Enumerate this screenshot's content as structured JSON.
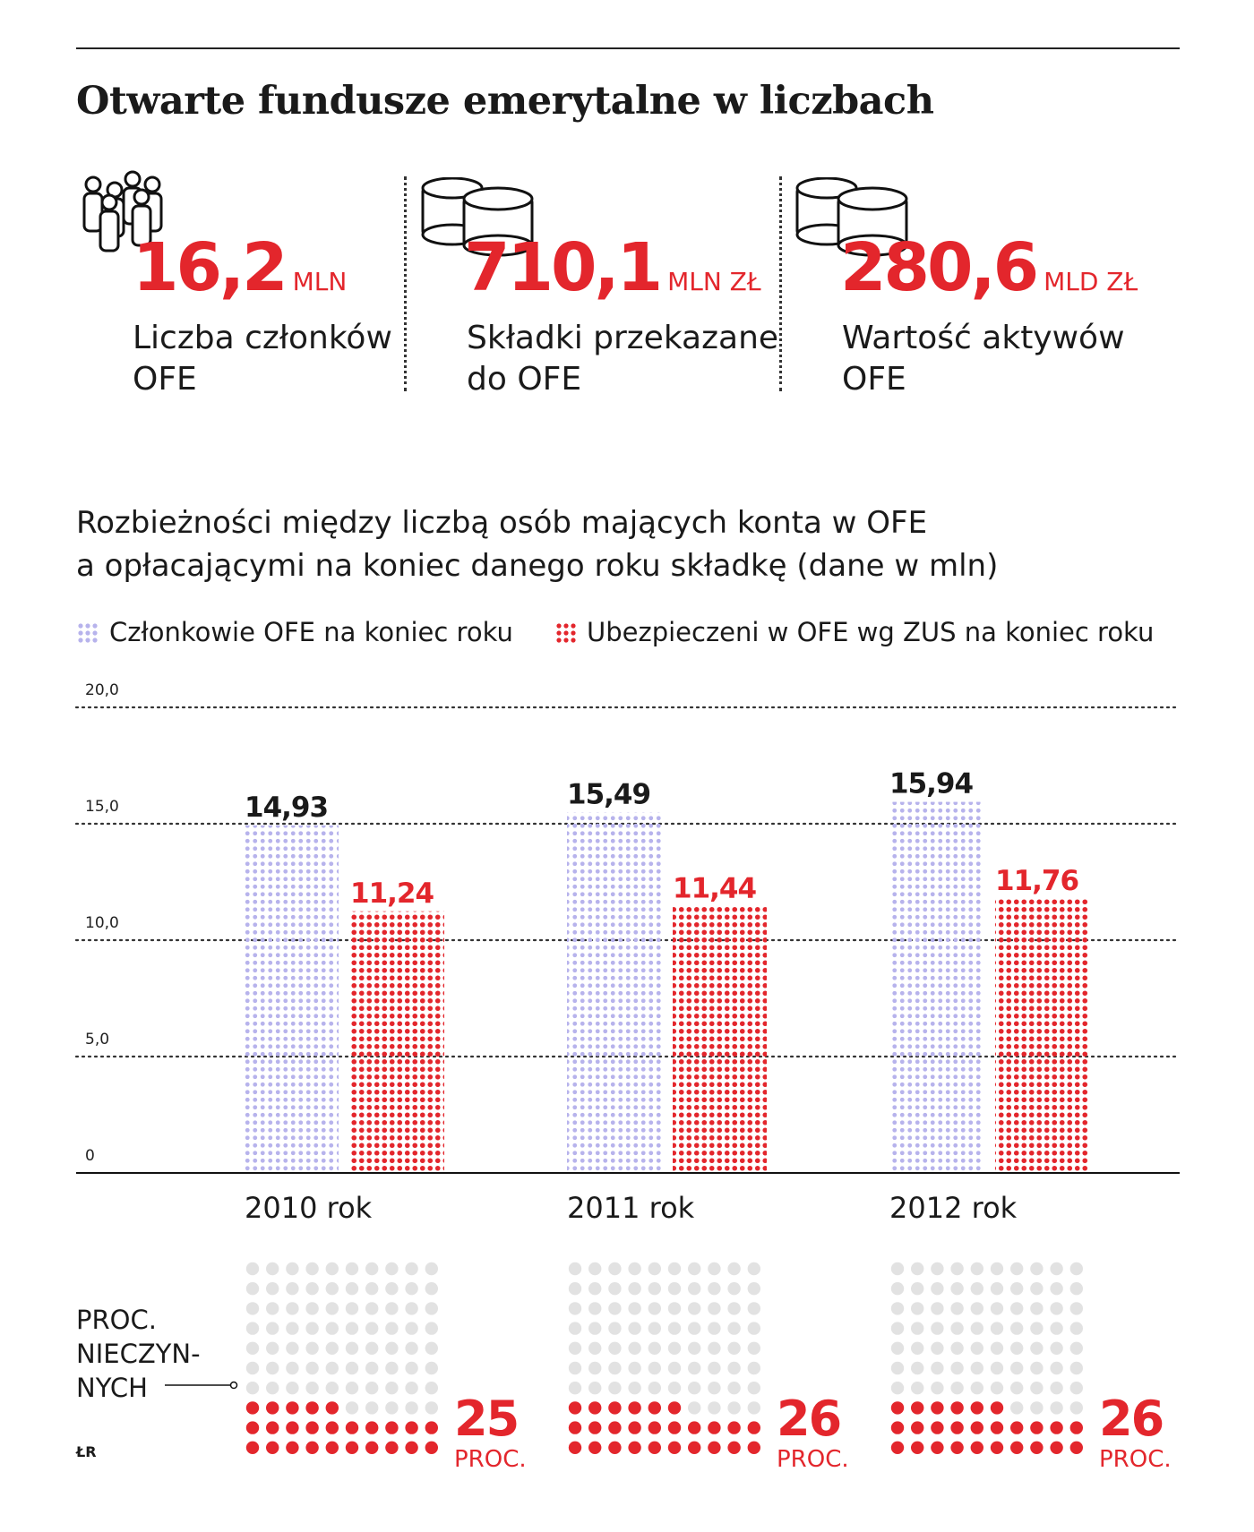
{
  "title": "Otwarte fundusze emerytalne w liczbach",
  "stats": [
    {
      "value": "16,2",
      "unit": "MLN",
      "label_line1": "Liczba członków",
      "label_line2": "OFE",
      "icon": "people-icon"
    },
    {
      "value": "710,1",
      "unit": "MLN ZŁ",
      "label_line1": "Składki przekazane",
      "label_line2": "do OFE",
      "icon": "coins-icon"
    },
    {
      "value": "280,6",
      "unit": "MLD ZŁ",
      "label_line1": "Wartość aktywów",
      "label_line2": "OFE",
      "icon": "coins-icon"
    }
  ],
  "subtitle_line1": "Rozbieżności między liczbą osób mających konta w OFE",
  "subtitle_line2": "a opłacającymi na koniec danego roku składkę (dane w mln)",
  "colors": {
    "red": "#e3262c",
    "lavender": "#b7b3ec",
    "gray": "#e2e2e2",
    "dark": "#1a1a1a"
  },
  "chart_data": {
    "type": "bar",
    "categories": [
      "2010 rok",
      "2011 rok",
      "2012 rok"
    ],
    "series": [
      {
        "name": "Członkowie OFE na koniec roku",
        "values": [
          14.93,
          15.49,
          15.94
        ],
        "labels": [
          "14,93",
          "15,49",
          "15,94"
        ],
        "color": "#b7b3ec"
      },
      {
        "name": "Ubezpieczeni w OFE wg ZUS na koniec roku",
        "values": [
          11.24,
          11.44,
          11.76
        ],
        "labels": [
          "11,24",
          "11,44",
          "11,76"
        ],
        "color": "#e3262c"
      }
    ],
    "ylim": [
      0,
      20
    ],
    "yticks": [
      0,
      5,
      10,
      15,
      20
    ],
    "ytick_labels": [
      "0",
      "5,0",
      "10,0",
      "15,0",
      "20,0"
    ],
    "grid": true,
    "legend": "top"
  },
  "inactive": {
    "label_lines": [
      "PROC.",
      "NIECZYN-",
      "NYCH"
    ],
    "values": [
      "25",
      "26",
      "26"
    ],
    "unit": "PROC.",
    "percent": [
      25,
      26,
      26
    ]
  },
  "source": "ŁR"
}
